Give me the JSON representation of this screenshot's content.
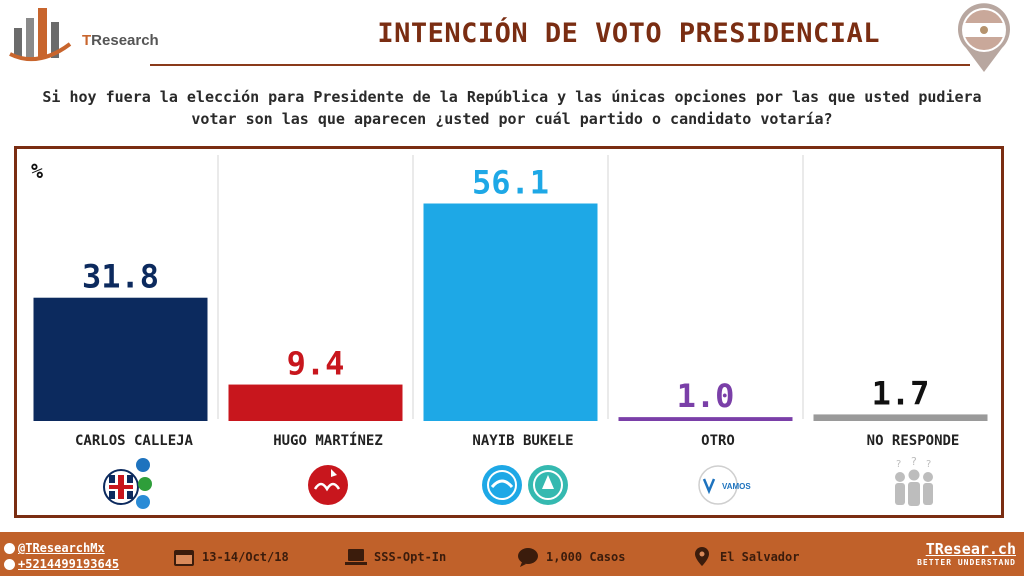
{
  "brand": {
    "prefix": "T",
    "name": "Research"
  },
  "title": "INTENCIÓN DE VOTO PRESIDENCIAL",
  "question": "Si hoy fuera la elección para Presidente de la República y las únicas opciones por las que usted pudiera votar son las que aparecen ¿usted por cuál partido o candidato votaría?",
  "chart_data": {
    "type": "bar",
    "unit_label": "%",
    "categories": [
      "CARLOS CALLEJA",
      "HUGO MARTÍNEZ",
      "NAYIB BUKELE",
      "OTRO",
      "NO RESPONDE"
    ],
    "values": [
      31.8,
      9.4,
      56.1,
      1.0,
      1.7
    ],
    "value_labels": [
      "31.8",
      "9.4",
      "56.1",
      "1.0",
      "1.7"
    ],
    "colors": [
      "#0c2a5e",
      "#c8161d",
      "#1ea8e6",
      "#7a3fa8",
      "#9a9a9a"
    ],
    "label_colors": [
      "#0c2a5e",
      "#c8161d",
      "#1ea8e6",
      "#7a3fa8",
      "#111111"
    ],
    "ylim": [
      0,
      65
    ],
    "grid": false
  },
  "party_logos": {
    "calleja": [
      "ARENA",
      "PCN",
      "PDC",
      "DS"
    ],
    "martinez": [
      "fmln"
    ],
    "bukele": [
      "GANA",
      "NI"
    ],
    "otro": [
      "VAMOS"
    ],
    "no_responde": [
      "people-question-icon"
    ]
  },
  "footer": {
    "twitter": "@TResearchMx",
    "phone": "+5214499193645",
    "date": "13-14/Oct/18",
    "method": "SSS-Opt-In",
    "cases": "1,000 Casos",
    "location": "El Salvador",
    "brand_url": "TResear.ch",
    "tagline": "BETTER UNDERSTAND"
  }
}
